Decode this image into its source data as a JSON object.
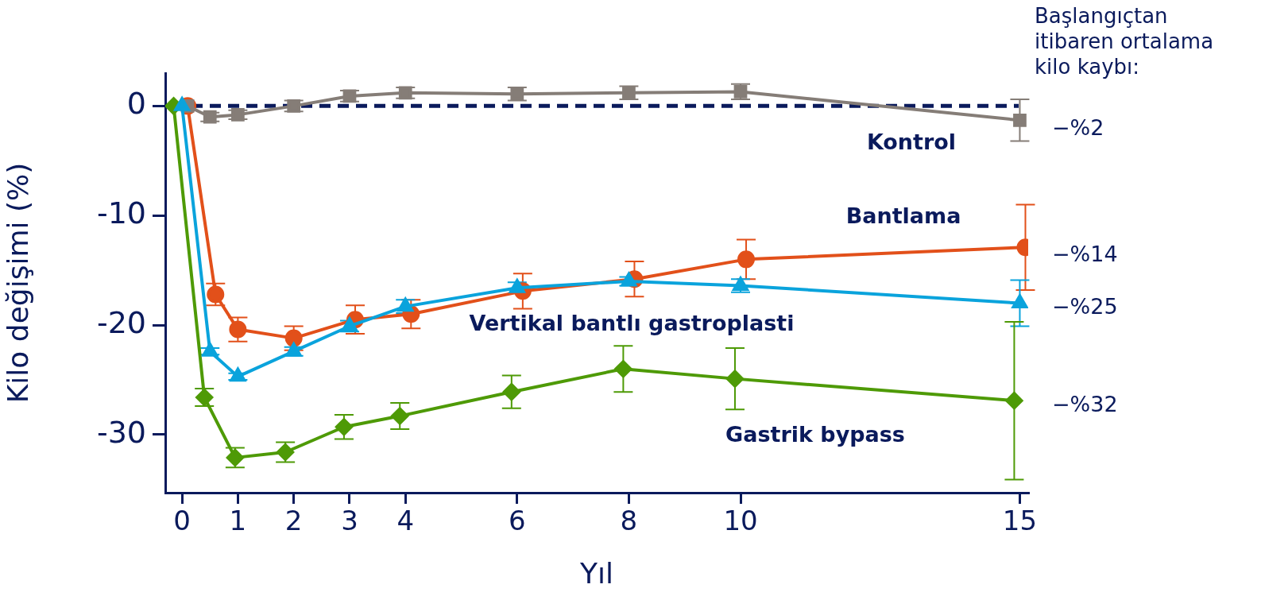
{
  "chart_data": {
    "type": "line",
    "xlabel": "Yıl",
    "ylabel": "Kilo değişimi (%)",
    "xlim": [
      -0.3,
      15.15
    ],
    "xticks": [
      0,
      1,
      2,
      3,
      4,
      6,
      8,
      10,
      15
    ],
    "ylim": [
      -35.3,
      3
    ],
    "yticks": [
      0,
      -10,
      -20,
      -30
    ],
    "grid": false,
    "legend": false,
    "line_style": "solid",
    "series": [
      {
        "name": "Kontrol",
        "color": "#857d77",
        "marker": "square",
        "x": [
          0.1,
          0.5,
          1,
          2,
          3,
          4,
          6,
          8,
          10,
          15
        ],
        "values": [
          0,
          -1.0,
          -0.8,
          0,
          0.9,
          1.2,
          1.1,
          1.2,
          1.3,
          -1.3
        ],
        "errors": [
          null,
          0.4,
          0.4,
          0.5,
          0.5,
          0.5,
          0.6,
          0.6,
          0.7,
          1.9
        ]
      },
      {
        "name": "Bantlama",
        "color": "#e2501a",
        "marker": "circle",
        "x": [
          0.1,
          0.6,
          1,
          2,
          3.1,
          4.1,
          6.1,
          8.1,
          10.1,
          15.1
        ],
        "values": [
          0,
          -17.2,
          -20.4,
          -21.2,
          -19.5,
          -19.0,
          -16.9,
          -15.8,
          -14.0,
          -12.9
        ],
        "errors": [
          null,
          1.0,
          1.1,
          1.1,
          1.3,
          1.3,
          1.6,
          1.6,
          1.8,
          3.9
        ]
      },
      {
        "name": "Vertikal bantlı gastroplasti",
        "color": "#0aa3dc",
        "marker": "triangle",
        "x": [
          0,
          0.5,
          1,
          2,
          3,
          4,
          6,
          8,
          10,
          15
        ],
        "values": [
          0,
          -22.4,
          -24.7,
          -22.4,
          -20.1,
          -18.3,
          -16.6,
          -16.0,
          -16.4,
          -18.0
        ],
        "errors": [
          null,
          0.3,
          0.3,
          0.4,
          0.5,
          0.6,
          0.5,
          0.4,
          0.6,
          2.1
        ]
      },
      {
        "name": "Gastrik bypass",
        "color": "#4e9a06",
        "marker": "diamond",
        "x": [
          -0.15,
          0.4,
          0.95,
          1.85,
          2.9,
          3.9,
          5.9,
          7.9,
          9.9,
          14.9
        ],
        "values": [
          0,
          -26.6,
          -32.1,
          -31.6,
          -29.3,
          -28.3,
          -26.1,
          -24.0,
          -24.9,
          -26.9
        ],
        "errors": [
          null,
          0.8,
          0.9,
          0.9,
          1.1,
          1.2,
          1.5,
          2.1,
          2.8,
          7.2
        ]
      }
    ],
    "ref_lines": [
      {
        "axis": "y",
        "value": 0,
        "color": "#0a1a5c",
        "line_style": "dashed"
      }
    ],
    "annotations": [
      "Başlangıçtan itibaren ortalama kilo kaybı:",
      "−%2",
      "−%14",
      "−%25",
      "−%32"
    ]
  }
}
